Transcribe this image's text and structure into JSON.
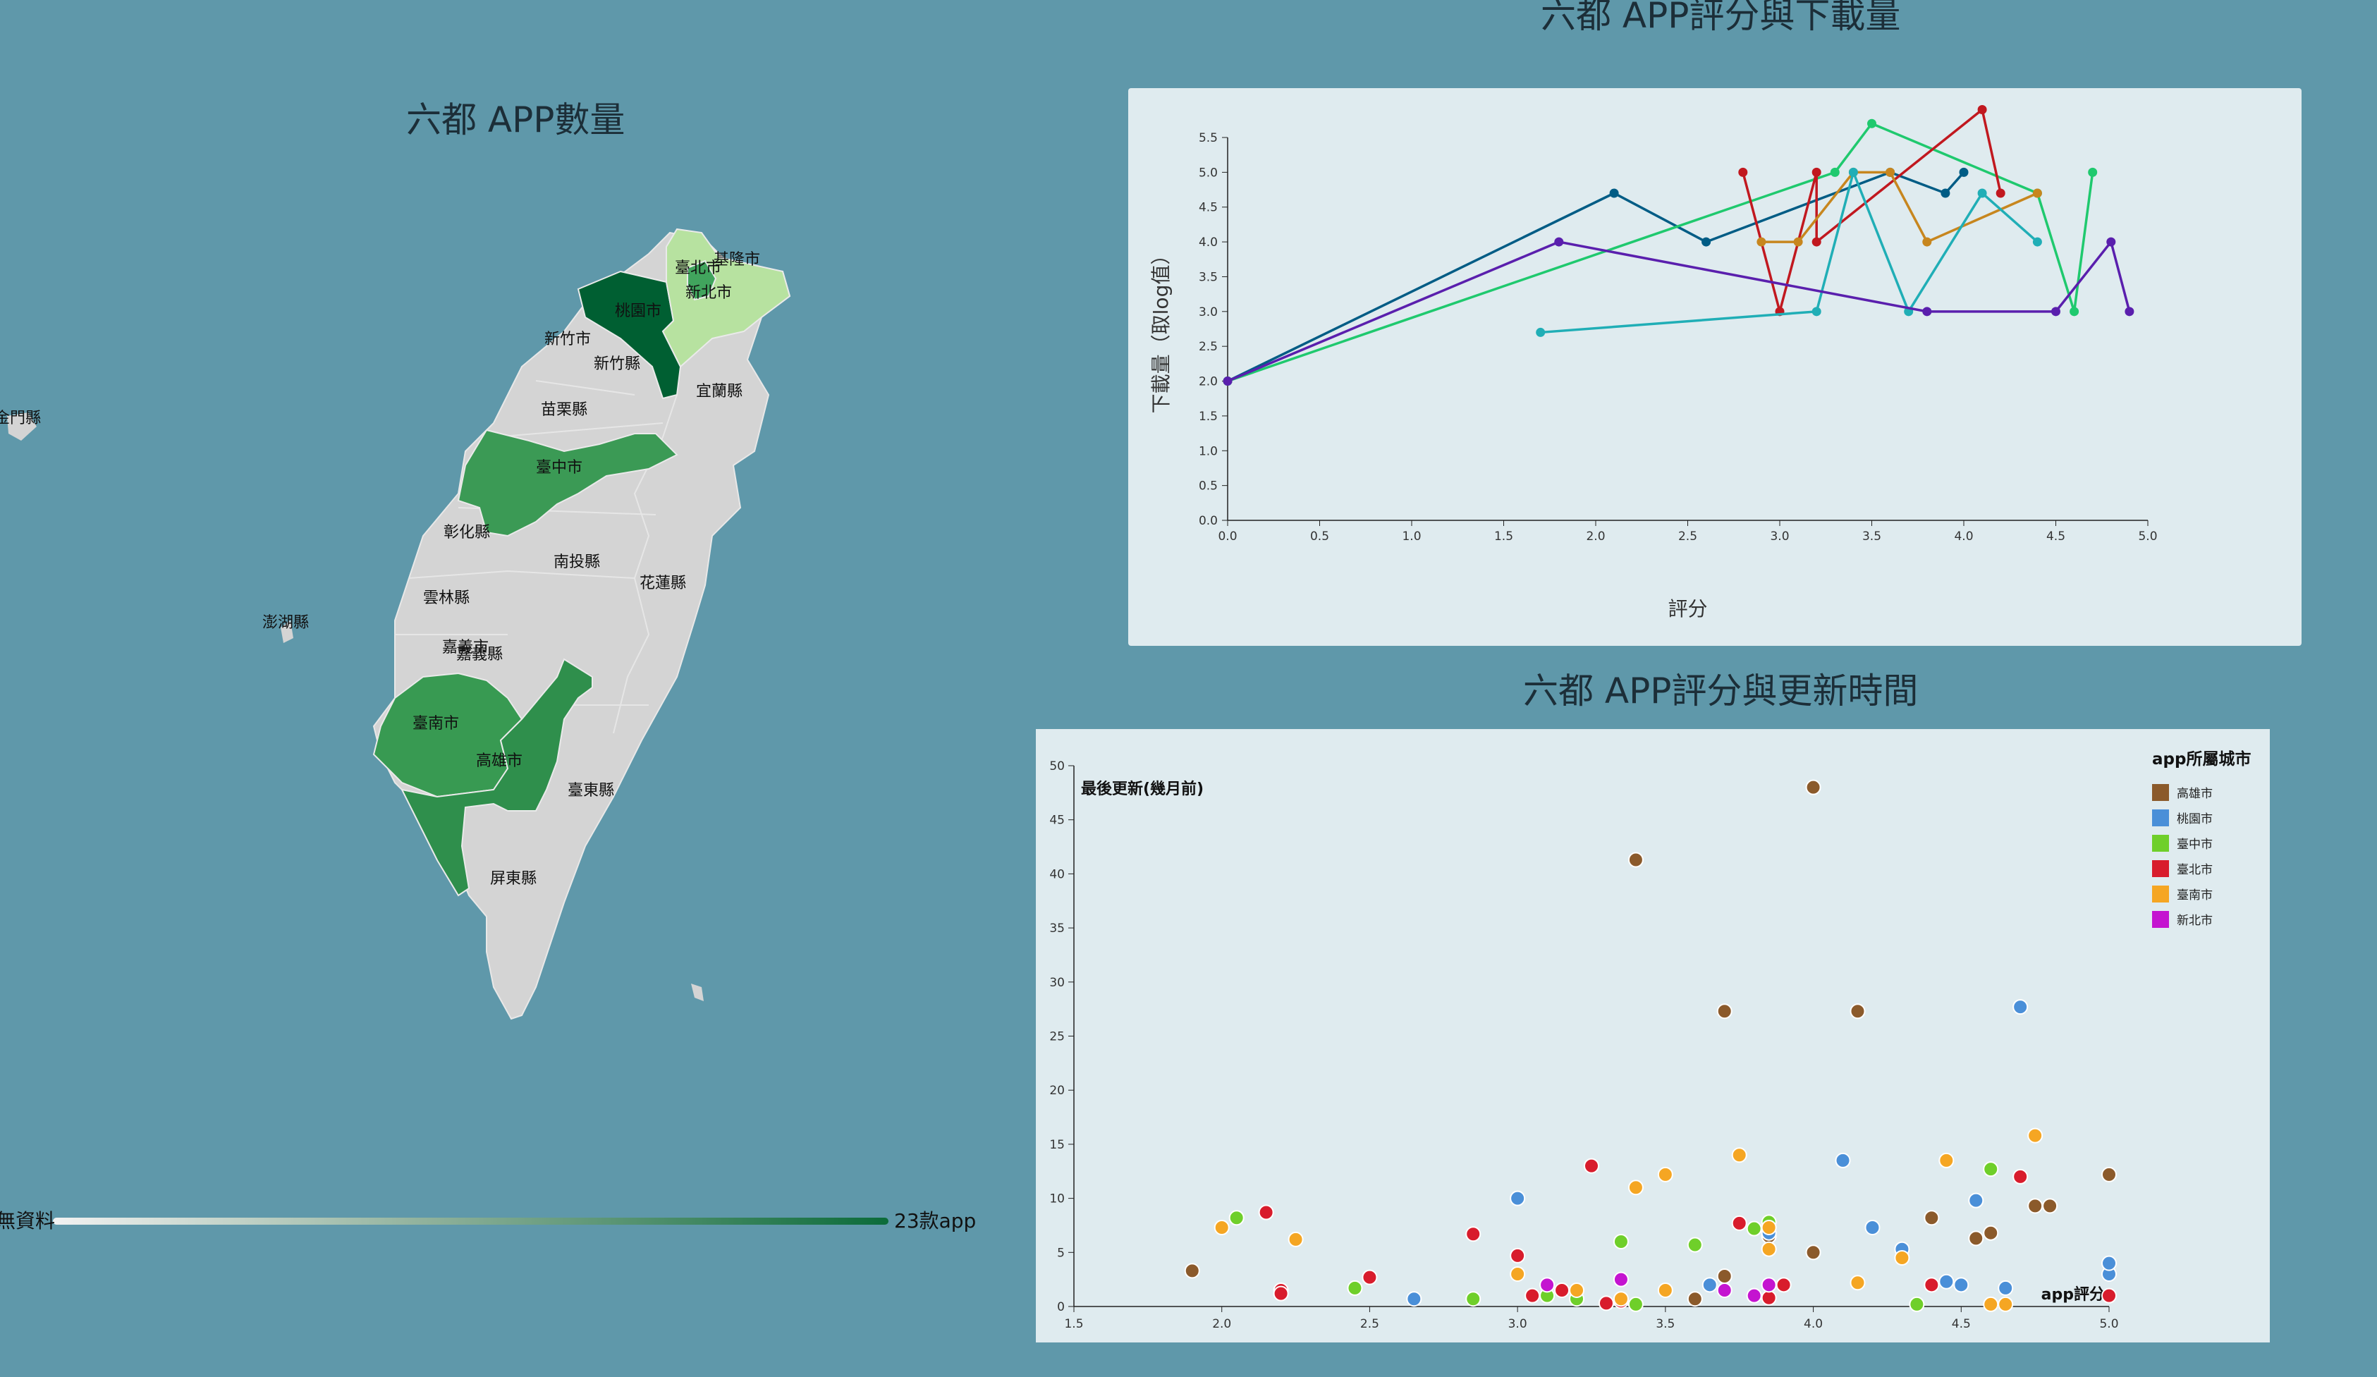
{
  "titles": {
    "map": "六都 APP數量",
    "line": "六都 APP評分與下載量",
    "scatter": "六都 APP評分與更新時間"
  },
  "map": {
    "legend_min_label": "無資料",
    "legend_max_label": "23款app",
    "colors": {
      "none": "#d4d4d4",
      "low": "#b7e2a0",
      "mid": "#41a45d",
      "high": "#005f32"
    },
    "counties": [
      "基隆市",
      "臺北市",
      "新北市",
      "桃園市",
      "新竹市",
      "新竹縣",
      "宜蘭縣",
      "苗栗縣",
      "臺中市",
      "彰化縣",
      "南投縣",
      "花蓮縣",
      "雲林縣",
      "嘉義市",
      "嘉義縣",
      "臺南市",
      "高雄市",
      "臺東縣",
      "屏東縣",
      "澎湖縣",
      "金門縣"
    ]
  },
  "chart_data": [
    {
      "type": "line",
      "title": "六都 APP評分與下載量",
      "xlabel": "評分",
      "ylabel": "下載量（取log值）",
      "xlim": [
        0,
        5
      ],
      "ylim": [
        0,
        5.5
      ],
      "xticks": [
        "0.0",
        "0.5",
        "1.0",
        "1.5",
        "2.0",
        "2.5",
        "3.0",
        "3.5",
        "4.0",
        "4.5",
        "5.0"
      ],
      "yticks": [
        "0.0",
        "0.5",
        "1.0",
        "1.5",
        "2.0",
        "2.5",
        "3.0",
        "3.5",
        "4.0",
        "4.5",
        "5.0",
        "5.5"
      ],
      "grid": false,
      "series": [
        {
          "color": "#005c85",
          "points": [
            [
              0,
              2
            ],
            [
              2.1,
              4.7
            ],
            [
              2.6,
              4
            ],
            [
              3.6,
              5
            ],
            [
              3.9,
              4.7
            ],
            [
              4.0,
              5
            ]
          ]
        },
        {
          "color": "#1fc96e",
          "points": [
            [
              0,
              2
            ],
            [
              3.3,
              5
            ],
            [
              3.5,
              5.7
            ],
            [
              4.4,
              4.7
            ],
            [
              4.6,
              3
            ],
            [
              4.7,
              5
            ]
          ]
        },
        {
          "color": "#c1181f",
          "points": [
            [
              2.8,
              5
            ],
            [
              3.0,
              3
            ],
            [
              3.2,
              5
            ],
            [
              3.2,
              4
            ],
            [
              4.1,
              5.9
            ],
            [
              4.2,
              4.7
            ]
          ]
        },
        {
          "color": "#c7861e",
          "points": [
            [
              2.9,
              4
            ],
            [
              3.1,
              4
            ],
            [
              3.4,
              5
            ],
            [
              3.6,
              5
            ],
            [
              3.8,
              4
            ],
            [
              4.4,
              4.7
            ]
          ]
        },
        {
          "color": "#20aeb6",
          "points": [
            [
              1.7,
              2.7
            ],
            [
              3.2,
              3
            ],
            [
              3.4,
              5
            ],
            [
              3.7,
              3
            ],
            [
              4.1,
              4.7
            ],
            [
              4.4,
              4
            ]
          ]
        },
        {
          "color": "#5a1fad",
          "points": [
            [
              0,
              2
            ],
            [
              1.8,
              4
            ],
            [
              3.8,
              3
            ],
            [
              4.5,
              3
            ],
            [
              4.8,
              4
            ],
            [
              4.9,
              3
            ]
          ]
        }
      ]
    },
    {
      "type": "scatter",
      "title": "六都 APP評分與更新時間",
      "xlabel": "app評分",
      "ylabel": "最後更新(幾月前)",
      "xlim": [
        1.5,
        5.0
      ],
      "ylim": [
        0,
        50
      ],
      "xticks": [
        "1.5",
        "2.0",
        "2.5",
        "3.0",
        "3.5",
        "4.0",
        "4.5",
        "5.0"
      ],
      "yticks": [
        "0",
        "5",
        "10",
        "15",
        "20",
        "25",
        "30",
        "35",
        "40",
        "45",
        "50"
      ],
      "grid": false,
      "legend_title": "app所屬城市",
      "legend_position": "top-right",
      "series": [
        {
          "name": "高雄市",
          "color": "#8b5a2b",
          "points": [
            [
              1.9,
              3.3
            ],
            [
              3.35,
              0.7
            ],
            [
              3.4,
              41.3
            ],
            [
              3.7,
              2.8
            ],
            [
              3.7,
              27.3
            ],
            [
              3.85,
              6.5
            ],
            [
              4.0,
              5
            ],
            [
              4.0,
              48
            ],
            [
              4.15,
              27.3
            ],
            [
              4.4,
              8.2
            ],
            [
              4.55,
              6.3
            ],
            [
              4.6,
              6.8
            ],
            [
              4.75,
              9.3
            ],
            [
              4.8,
              9.3
            ],
            [
              5.0,
              12.2
            ],
            [
              3.6,
              0.7
            ]
          ]
        },
        {
          "name": "桃園市",
          "color": "#4a8fd8",
          "points": [
            [
              2.65,
              0.7
            ],
            [
              3.0,
              10
            ],
            [
              3.65,
              2
            ],
            [
              4.1,
              13.5
            ],
            [
              4.2,
              7.3
            ],
            [
              4.3,
              5.3
            ],
            [
              4.45,
              2.3
            ],
            [
              4.5,
              2
            ],
            [
              4.55,
              9.8
            ],
            [
              4.65,
              1.7
            ],
            [
              4.7,
              27.7
            ],
            [
              5.0,
              3
            ],
            [
              5.0,
              4
            ],
            [
              3.85,
              6.8
            ]
          ]
        },
        {
          "name": "臺中市",
          "color": "#6fcf2a",
          "points": [
            [
              2.05,
              8.2
            ],
            [
              2.45,
              1.7
            ],
            [
              2.85,
              0.7
            ],
            [
              3.2,
              0.7
            ],
            [
              3.35,
              6
            ],
            [
              3.4,
              0.2
            ],
            [
              3.6,
              5.7
            ],
            [
              3.8,
              7.2
            ],
            [
              3.85,
              7.8
            ],
            [
              4.35,
              0.2
            ],
            [
              4.6,
              12.7
            ],
            [
              3.1,
              1
            ]
          ]
        },
        {
          "name": "臺北市",
          "color": "#d81c2c",
          "points": [
            [
              2.15,
              8.7
            ],
            [
              2.2,
              1.5
            ],
            [
              2.2,
              1.2
            ],
            [
              2.5,
              2.7
            ],
            [
              2.85,
              6.7
            ],
            [
              3.0,
              4.7
            ],
            [
              3.05,
              1
            ],
            [
              3.15,
              1.5
            ],
            [
              3.25,
              13
            ],
            [
              3.3,
              0.3
            ],
            [
              3.75,
              7.7
            ],
            [
              3.85,
              0.8
            ],
            [
              3.9,
              2
            ],
            [
              4.4,
              2
            ],
            [
              4.7,
              12
            ],
            [
              5.0,
              1
            ],
            [
              3.35,
              0.5
            ]
          ]
        },
        {
          "name": "臺南市",
          "color": "#f5a623",
          "points": [
            [
              2.0,
              7.3
            ],
            [
              2.25,
              6.2
            ],
            [
              3.0,
              3
            ],
            [
              3.2,
              1.5
            ],
            [
              3.35,
              0.7
            ],
            [
              3.4,
              11
            ],
            [
              3.5,
              12.2
            ],
            [
              3.5,
              1.5
            ],
            [
              3.75,
              14
            ],
            [
              3.85,
              7.3
            ],
            [
              3.85,
              5.3
            ],
            [
              4.15,
              2.2
            ],
            [
              4.3,
              4.5
            ],
            [
              4.45,
              13.5
            ],
            [
              4.6,
              0.2
            ],
            [
              4.65,
              0.2
            ],
            [
              4.75,
              15.8
            ]
          ]
        },
        {
          "name": "新北市",
          "color": "#c414d0",
          "points": [
            [
              3.1,
              2
            ],
            [
              3.35,
              2.5
            ],
            [
              3.7,
              1.5
            ],
            [
              3.8,
              1
            ],
            [
              3.85,
              2
            ]
          ]
        }
      ]
    }
  ]
}
